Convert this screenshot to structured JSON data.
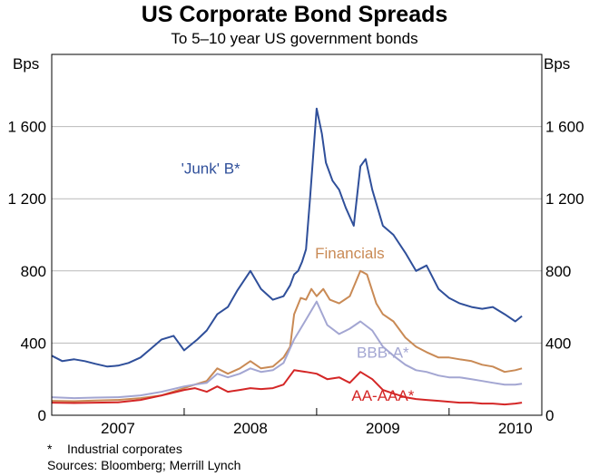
{
  "chart_data": {
    "type": "line",
    "title": "US Corporate Bond Spreads",
    "subtitle": "To 5–10 year US government bonds",
    "unit_left": "Bps",
    "unit_right": "Bps",
    "ylim": [
      0,
      2000
    ],
    "yticks": [
      0,
      400,
      800,
      1200,
      1600
    ],
    "ytick_labels": [
      "0",
      "400",
      "800",
      "1 200",
      "1 600"
    ],
    "xlim": [
      2006.5,
      2010.2
    ],
    "year_labels": [
      {
        "label": "2007",
        "x": 2007.0
      },
      {
        "label": "2008",
        "x": 2008.0
      },
      {
        "label": "2009",
        "x": 2009.0
      },
      {
        "label": "2010",
        "x": 2010.0
      }
    ],
    "year_dividers": [
      2007.5,
      2008.5,
      2009.5
    ],
    "grid": true,
    "series": [
      {
        "name": "'Junk' B*",
        "color": "#2f4f9a",
        "label_x": 2007.7,
        "label_y": 1340,
        "x": [
          2006.5,
          2006.58,
          2006.67,
          2006.75,
          2006.83,
          2006.92,
          2007.0,
          2007.08,
          2007.17,
          2007.25,
          2007.33,
          2007.42,
          2007.5,
          2007.55,
          2007.6,
          2007.67,
          2007.75,
          2007.83,
          2007.9,
          2008.0,
          2008.08,
          2008.17,
          2008.25,
          2008.3,
          2008.33,
          2008.36,
          2008.39,
          2008.42,
          2008.45,
          2008.5,
          2008.54,
          2008.57,
          2008.62,
          2008.67,
          2008.72,
          2008.78,
          2008.83,
          2008.87,
          2008.92,
          2009.0,
          2009.08,
          2009.17,
          2009.25,
          2009.33,
          2009.42,
          2009.5,
          2009.58,
          2009.67,
          2009.75,
          2009.83,
          2009.92,
          2010.0,
          2010.05
        ],
        "values": [
          330,
          300,
          310,
          300,
          285,
          270,
          275,
          290,
          320,
          370,
          420,
          440,
          360,
          390,
          420,
          470,
          560,
          600,
          690,
          800,
          700,
          640,
          660,
          720,
          780,
          800,
          850,
          920,
          1200,
          1700,
          1560,
          1400,
          1300,
          1250,
          1150,
          1050,
          1380,
          1420,
          1250,
          1050,
          1000,
          900,
          800,
          830,
          700,
          650,
          620,
          600,
          590,
          600,
          560,
          520,
          550
        ]
      },
      {
        "name": "Financials",
        "color": "#c98a55",
        "label_x": 2008.75,
        "label_y": 870,
        "x": [
          2006.5,
          2006.67,
          2006.83,
          2007.0,
          2007.17,
          2007.33,
          2007.5,
          2007.58,
          2007.67,
          2007.75,
          2007.83,
          2007.92,
          2008.0,
          2008.08,
          2008.17,
          2008.25,
          2008.3,
          2008.33,
          2008.38,
          2008.42,
          2008.46,
          2008.5,
          2008.55,
          2008.6,
          2008.67,
          2008.75,
          2008.83,
          2008.88,
          2008.95,
          2009.0,
          2009.08,
          2009.17,
          2009.25,
          2009.33,
          2009.42,
          2009.5,
          2009.58,
          2009.67,
          2009.75,
          2009.83,
          2009.92,
          2010.0,
          2010.05
        ],
        "values": [
          80,
          78,
          82,
          85,
          95,
          110,
          150,
          170,
          190,
          260,
          230,
          260,
          300,
          260,
          270,
          320,
          380,
          560,
          650,
          640,
          700,
          660,
          700,
          640,
          620,
          660,
          800,
          780,
          620,
          560,
          520,
          430,
          380,
          350,
          320,
          320,
          310,
          300,
          280,
          270,
          240,
          250,
          260
        ]
      },
      {
        "name": "BBB-A*",
        "color": "#a3a6d2",
        "label_x": 2009.0,
        "label_y": 320,
        "x": [
          2006.5,
          2006.67,
          2006.83,
          2007.0,
          2007.17,
          2007.33,
          2007.5,
          2007.58,
          2007.67,
          2007.75,
          2007.83,
          2007.92,
          2008.0,
          2008.08,
          2008.17,
          2008.25,
          2008.33,
          2008.42,
          2008.5,
          2008.58,
          2008.67,
          2008.75,
          2008.83,
          2008.92,
          2009.0,
          2009.08,
          2009.17,
          2009.25,
          2009.33,
          2009.42,
          2009.5,
          2009.58,
          2009.67,
          2009.75,
          2009.83,
          2009.92,
          2010.0,
          2010.05
        ],
        "values": [
          100,
          95,
          98,
          100,
          110,
          130,
          160,
          170,
          180,
          230,
          210,
          230,
          260,
          240,
          250,
          290,
          420,
          530,
          630,
          500,
          450,
          480,
          520,
          470,
          380,
          330,
          280,
          250,
          240,
          220,
          210,
          210,
          200,
          190,
          180,
          170,
          170,
          175
        ]
      },
      {
        "name": "AA-AAA*",
        "color": "#d42626",
        "label_x": 2009.0,
        "label_y": 80,
        "x": [
          2006.5,
          2006.67,
          2006.83,
          2007.0,
          2007.17,
          2007.33,
          2007.5,
          2007.58,
          2007.67,
          2007.75,
          2007.83,
          2007.92,
          2008.0,
          2008.08,
          2008.17,
          2008.25,
          2008.33,
          2008.42,
          2008.5,
          2008.58,
          2008.67,
          2008.75,
          2008.83,
          2008.92,
          2009.0,
          2009.08,
          2009.17,
          2009.25,
          2009.33,
          2009.42,
          2009.5,
          2009.58,
          2009.67,
          2009.75,
          2009.83,
          2009.92,
          2010.0,
          2010.05
        ],
        "values": [
          70,
          68,
          70,
          72,
          85,
          110,
          140,
          150,
          130,
          160,
          130,
          140,
          150,
          145,
          150,
          170,
          250,
          240,
          230,
          200,
          210,
          180,
          240,
          200,
          140,
          120,
          100,
          90,
          85,
          80,
          75,
          70,
          70,
          65,
          65,
          60,
          65,
          70
        ]
      }
    ]
  },
  "footnotes": {
    "star": "*",
    "note": "Industrial corporates",
    "sources": "Sources: Bloomberg; Merrill Lynch"
  }
}
